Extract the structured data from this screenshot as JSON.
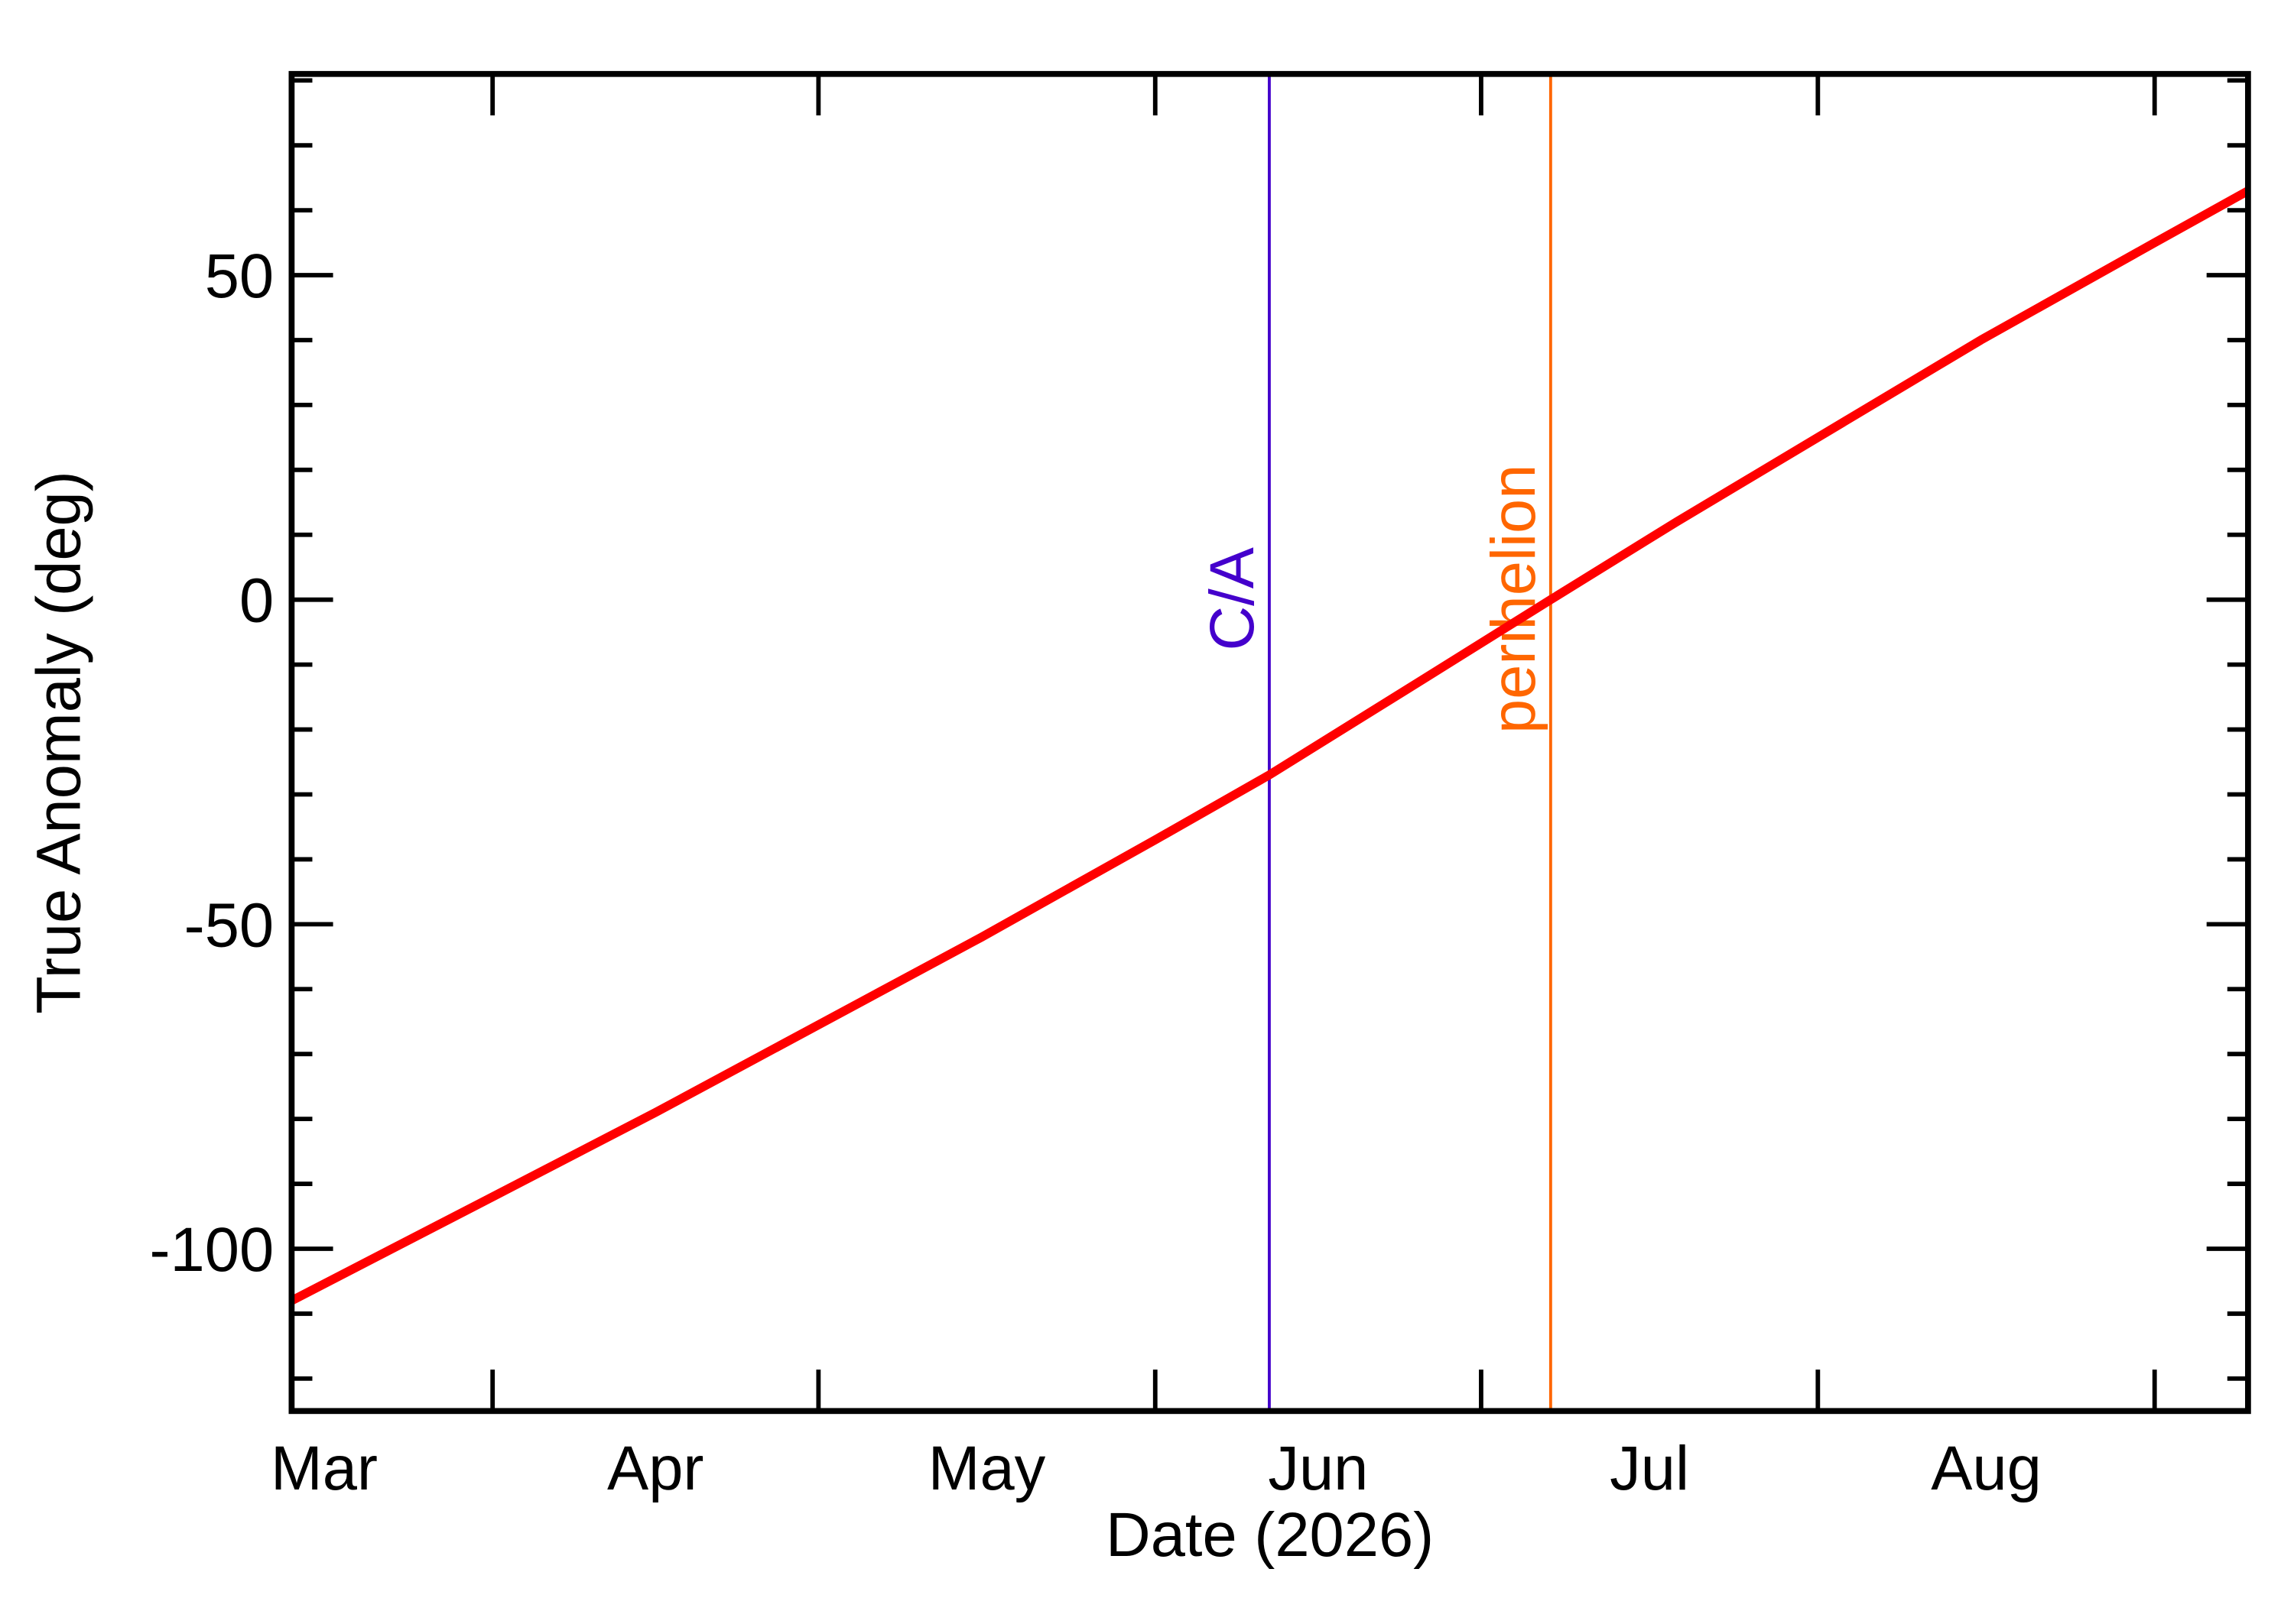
{
  "chart_data": {
    "type": "line",
    "xlabel": "Date (2026)",
    "ylabel": "True Anomaly (deg)",
    "x": [
      72.5,
      91,
      106,
      121,
      136,
      152,
      162.5,
      175,
      188.4,
      200,
      213,
      228,
      244,
      252.6
    ],
    "series": [
      {
        "name": "True Anomaly",
        "color": "#ff0000",
        "values": [
          -108,
          -92,
          -79,
          -65.5,
          -52,
          -37,
          -27,
          -14,
          0,
          12,
          25,
          40,
          55,
          63
        ]
      }
    ],
    "xlim": [
      72.5,
      252.6
    ],
    "xticks": [
      91,
      121,
      152,
      182,
      213,
      244
    ],
    "xtick_labels": [
      {
        "value": 75.5,
        "label": "Mar"
      },
      {
        "value": 106,
        "label": "Apr"
      },
      {
        "value": 136.5,
        "label": "May"
      },
      {
        "value": 167,
        "label": "Jun"
      },
      {
        "value": 197.5,
        "label": "Jul"
      },
      {
        "value": 228.5,
        "label": "Aug"
      }
    ],
    "ylim": [
      -125,
      81
    ],
    "yticks": [
      -100,
      -50,
      0,
      50
    ],
    "yminor_ticks": [
      -120,
      -110,
      -90,
      -80,
      -70,
      -60,
      -40,
      -30,
      -20,
      -10,
      10,
      20,
      30,
      40,
      60,
      70,
      80
    ],
    "vlines": [
      {
        "x": 162.5,
        "label": "C/A",
        "color": "#4400cc"
      },
      {
        "x": 188.4,
        "label": "perihelion",
        "color": "#ff6600"
      }
    ]
  }
}
